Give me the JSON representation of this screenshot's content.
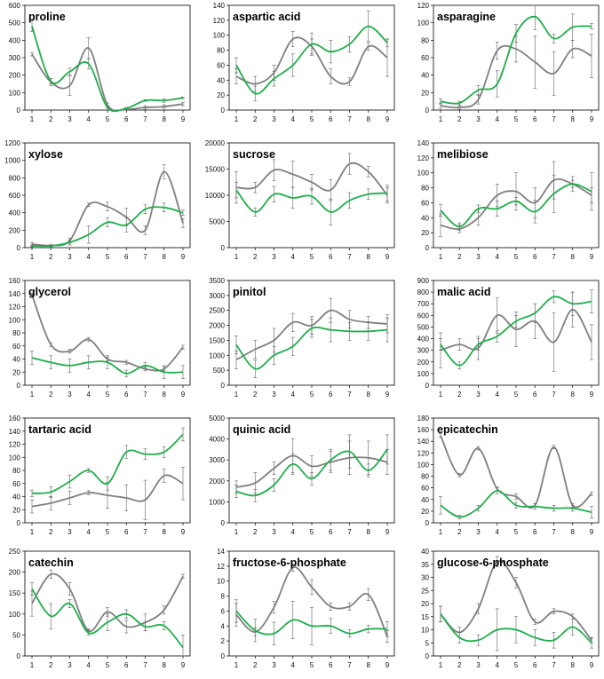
{
  "colors": {
    "series_a": "#7f7f7f",
    "series_b": "#1fae4b",
    "frame": "#000000"
  },
  "chart_data": [
    {
      "type": "line",
      "title": "proline",
      "ylim": [
        0,
        600
      ],
      "yticks": [
        0,
        100,
        200,
        300,
        400,
        500,
        600
      ],
      "categories": [
        "1",
        "2",
        "3",
        "4",
        "5",
        "6",
        "7",
        "8",
        "9"
      ],
      "series": [
        {
          "name": "gray",
          "values": [
            320,
            160,
            140,
            355,
            30,
            5,
            15,
            20,
            35
          ],
          "errors": [
            10,
            20,
            55,
            60,
            10,
            5,
            10,
            10,
            10
          ]
        },
        {
          "name": "green",
          "values": [
            480,
            165,
            220,
            265,
            15,
            10,
            55,
            55,
            70
          ],
          "errors": [
            30,
            15,
            20,
            30,
            5,
            5,
            5,
            10,
            5
          ]
        }
      ]
    },
    {
      "type": "line",
      "title": "aspartic acid",
      "ylim": [
        0,
        140
      ],
      "yticks": [
        0,
        20,
        40,
        60,
        80,
        100,
        120,
        140
      ],
      "categories": [
        "1",
        "2",
        "3",
        "4",
        "5",
        "6",
        "7",
        "8",
        "9"
      ],
      "series": [
        {
          "name": "gray",
          "values": [
            45,
            35,
            50,
            95,
            85,
            45,
            38,
            85,
            70
          ],
          "errors": [
            10,
            10,
            10,
            10,
            10,
            10,
            5,
            5,
            25
          ]
        },
        {
          "name": "green",
          "values": [
            60,
            22,
            42,
            60,
            88,
            78,
            88,
            112,
            90
          ],
          "errors": [
            10,
            10,
            10,
            15,
            15,
            15,
            10,
            20,
            5
          ]
        }
      ]
    },
    {
      "type": "line",
      "title": "asparagine",
      "ylim": [
        0,
        120
      ],
      "yticks": [
        0,
        20,
        40,
        60,
        80,
        100,
        120
      ],
      "categories": [
        "1",
        "2",
        "3",
        "4",
        "5",
        "6",
        "7",
        "8",
        "9"
      ],
      "series": [
        {
          "name": "gray",
          "values": [
            5,
            3,
            12,
            68,
            70,
            55,
            42,
            70,
            62
          ],
          "errors": [
            3,
            2,
            5,
            10,
            15,
            30,
            25,
            10,
            25
          ]
        },
        {
          "name": "green",
          "values": [
            10,
            8,
            23,
            30,
            88,
            107,
            82,
            95,
            96
          ],
          "errors": [
            3,
            2,
            5,
            15,
            10,
            15,
            5,
            15,
            3
          ]
        }
      ]
    },
    {
      "type": "line",
      "title": "xylose",
      "ylim": [
        0,
        1200
      ],
      "yticks": [
        0,
        200,
        400,
        600,
        800,
        1000,
        1200
      ],
      "categories": [
        "1",
        "2",
        "3",
        "4",
        "5",
        "6",
        "7",
        "8",
        "9"
      ],
      "series": [
        {
          "name": "gray",
          "values": [
            40,
            25,
            80,
            490,
            470,
            350,
            200,
            870,
            280
          ],
          "errors": [
            20,
            10,
            30,
            20,
            50,
            100,
            50,
            80,
            50
          ]
        },
        {
          "name": "green",
          "values": [
            20,
            20,
            60,
            150,
            290,
            260,
            440,
            460,
            400
          ],
          "errors": [
            10,
            10,
            30,
            100,
            50,
            80,
            50,
            50,
            30
          ]
        }
      ]
    },
    {
      "type": "line",
      "title": "sucrose",
      "ylim": [
        0,
        20000
      ],
      "yticks": [
        0,
        5000,
        10000,
        15000,
        20000
      ],
      "categories": [
        "1",
        "2",
        "3",
        "4",
        "5",
        "6",
        "7",
        "8",
        "9"
      ],
      "series": [
        {
          "name": "gray",
          "values": [
            11500,
            11500,
            14800,
            14000,
            12500,
            11000,
            16000,
            14500,
            10000
          ],
          "errors": [
            3000,
            1000,
            2000,
            2500,
            1500,
            2000,
            2000,
            1000,
            1500
          ]
        },
        {
          "name": "green",
          "values": [
            11000,
            6800,
            10200,
            9500,
            9800,
            6800,
            9000,
            10200,
            10400
          ],
          "errors": [
            1500,
            800,
            1500,
            2000,
            1500,
            2500,
            1500,
            1000,
            1500
          ]
        }
      ]
    },
    {
      "type": "line",
      "title": "melibiose",
      "ylim": [
        0,
        140
      ],
      "yticks": [
        0,
        20,
        40,
        60,
        80,
        100,
        120,
        140
      ],
      "categories": [
        "1",
        "2",
        "3",
        "4",
        "5",
        "6",
        "7",
        "8",
        "9"
      ],
      "series": [
        {
          "name": "gray",
          "values": [
            30,
            25,
            40,
            70,
            75,
            60,
            90,
            85,
            70
          ],
          "errors": [
            15,
            5,
            10,
            15,
            25,
            20,
            25,
            10,
            10
          ]
        },
        {
          "name": "green",
          "values": [
            50,
            28,
            52,
            52,
            62,
            48,
            72,
            85,
            75
          ],
          "errors": [
            8,
            5,
            5,
            10,
            5,
            15,
            25,
            5,
            25
          ]
        }
      ]
    },
    {
      "type": "line",
      "title": "glycerol",
      "ylim": [
        0,
        160
      ],
      "yticks": [
        0,
        20,
        40,
        60,
        80,
        100,
        120,
        140,
        160
      ],
      "categories": [
        "1",
        "2",
        "3",
        "4",
        "5",
        "6",
        "7",
        "8",
        "9"
      ],
      "series": [
        {
          "name": "gray",
          "values": [
            138,
            62,
            52,
            70,
            40,
            35,
            25,
            25,
            58
          ],
          "errors": [
            3,
            3,
            3,
            3,
            3,
            3,
            3,
            3,
            3
          ]
        },
        {
          "name": "green",
          "values": [
            42,
            35,
            30,
            35,
            35,
            18,
            30,
            20,
            20
          ],
          "errors": [
            10,
            10,
            10,
            10,
            10,
            5,
            5,
            10,
            10
          ]
        }
      ]
    },
    {
      "type": "line",
      "title": "pinitol",
      "ylim": [
        0,
        3500
      ],
      "yticks": [
        0,
        500,
        1000,
        1500,
        2000,
        2500,
        3000,
        3500
      ],
      "categories": [
        "1",
        "2",
        "3",
        "4",
        "5",
        "6",
        "7",
        "8",
        "9"
      ],
      "series": [
        {
          "name": "gray",
          "values": [
            850,
            1200,
            1500,
            2100,
            2000,
            2500,
            2200,
            2100,
            2050
          ],
          "errors": [
            300,
            300,
            400,
            300,
            300,
            400,
            300,
            200,
            300
          ]
        },
        {
          "name": "green",
          "values": [
            1350,
            550,
            1000,
            1300,
            1900,
            1850,
            1800,
            1800,
            1850
          ],
          "errors": [
            300,
            300,
            300,
            300,
            300,
            400,
            300,
            300,
            400
          ]
        }
      ]
    },
    {
      "type": "line",
      "title": "malic acid",
      "ylim": [
        0,
        900
      ],
      "yticks": [
        0,
        100,
        200,
        300,
        400,
        500,
        600,
        700,
        800,
        900
      ],
      "categories": [
        "1",
        "2",
        "3",
        "4",
        "5",
        "6",
        "7",
        "8",
        "9"
      ],
      "series": [
        {
          "name": "gray",
          "values": [
            300,
            350,
            320,
            600,
            480,
            550,
            370,
            650,
            370
          ],
          "errors": [
            150,
            50,
            100,
            150,
            150,
            150,
            250,
            150,
            150
          ]
        },
        {
          "name": "green",
          "values": [
            350,
            170,
            350,
            420,
            550,
            620,
            760,
            700,
            720
          ],
          "errors": [
            50,
            30,
            50,
            50,
            50,
            80,
            50,
            100,
            100
          ]
        }
      ]
    },
    {
      "type": "line",
      "title": "tartaric acid",
      "ylim": [
        0,
        160
      ],
      "yticks": [
        0,
        20,
        40,
        60,
        80,
        100,
        120,
        140,
        160
      ],
      "categories": [
        "1",
        "2",
        "3",
        "4",
        "5",
        "6",
        "7",
        "8",
        "9"
      ],
      "series": [
        {
          "name": "gray",
          "values": [
            25,
            30,
            38,
            46,
            42,
            38,
            35,
            72,
            60
          ],
          "errors": [
            10,
            10,
            10,
            3,
            20,
            20,
            30,
            10,
            25
          ]
        },
        {
          "name": "green",
          "values": [
            45,
            47,
            63,
            80,
            60,
            108,
            105,
            108,
            135
          ],
          "errors": [
            5,
            8,
            10,
            3,
            10,
            10,
            8,
            8,
            10
          ]
        }
      ]
    },
    {
      "type": "line",
      "title": "quinic acid",
      "ylim": [
        0,
        5000
      ],
      "yticks": [
        0,
        1000,
        2000,
        3000,
        4000,
        5000
      ],
      "categories": [
        "1",
        "2",
        "3",
        "4",
        "5",
        "6",
        "7",
        "8",
        "9"
      ],
      "series": [
        {
          "name": "gray",
          "values": [
            1700,
            1900,
            2600,
            3200,
            2700,
            2900,
            3100,
            3100,
            2900
          ],
          "errors": [
            300,
            500,
            300,
            800,
            500,
            500,
            800,
            800,
            600
          ]
        },
        {
          "name": "green",
          "values": [
            1500,
            1300,
            1800,
            2800,
            2100,
            3000,
            3400,
            2500,
            3500
          ],
          "errors": [
            300,
            300,
            300,
            500,
            300,
            500,
            800,
            300,
            700
          ]
        }
      ]
    },
    {
      "type": "line",
      "title": "epicatechin",
      "ylim": [
        0,
        180
      ],
      "yticks": [
        0,
        20,
        40,
        60,
        80,
        100,
        120,
        140,
        160,
        180
      ],
      "categories": [
        "1",
        "2",
        "3",
        "4",
        "5",
        "6",
        "7",
        "8",
        "9"
      ],
      "series": [
        {
          "name": "gray",
          "values": [
            150,
            82,
            128,
            58,
            45,
            30,
            130,
            30,
            50
          ],
          "errors": [
            3,
            3,
            3,
            3,
            5,
            3,
            3,
            3,
            3
          ]
        },
        {
          "name": "green",
          "values": [
            30,
            10,
            25,
            55,
            30,
            28,
            25,
            25,
            18
          ],
          "errors": [
            15,
            3,
            5,
            5,
            5,
            5,
            5,
            5,
            10
          ]
        }
      ]
    },
    {
      "type": "line",
      "title": "catechin",
      "ylim": [
        0,
        250
      ],
      "yticks": [
        0,
        50,
        100,
        150,
        200,
        250
      ],
      "categories": [
        "1",
        "2",
        "3",
        "4",
        "5",
        "6",
        "7",
        "8",
        "9"
      ],
      "series": [
        {
          "name": "gray",
          "values": [
            125,
            195,
            160,
            60,
            105,
            70,
            80,
            110,
            190
          ],
          "errors": [
            30,
            10,
            15,
            5,
            10,
            15,
            20,
            10,
            5
          ]
        },
        {
          "name": "green",
          "values": [
            160,
            95,
            125,
            55,
            80,
            100,
            70,
            72,
            20
          ],
          "errors": [
            15,
            30,
            10,
            5,
            20,
            10,
            10,
            10,
            30
          ]
        }
      ]
    },
    {
      "type": "line",
      "title": "fructose-6-phosphate",
      "ylim": [
        0,
        14
      ],
      "yticks": [
        0,
        2,
        4,
        6,
        8,
        10,
        12,
        14
      ],
      "categories": [
        "1",
        "2",
        "3",
        "4",
        "5",
        "6",
        "7",
        "8",
        "9"
      ],
      "series": [
        {
          "name": "gray",
          "values": [
            5.5,
            3.2,
            6.5,
            11.8,
            9.2,
            6.6,
            6.6,
            8.2,
            2.6
          ],
          "errors": [
            1.5,
            0.5,
            0.8,
            0.5,
            1.0,
            0.5,
            0.5,
            0.8,
            0.8
          ]
        },
        {
          "name": "green",
          "values": [
            6.0,
            3.4,
            3.0,
            4.8,
            4.0,
            4.0,
            3.0,
            3.6,
            3.6
          ],
          "errors": [
            1.5,
            1.5,
            1.5,
            2.5,
            2.5,
            1.0,
            0.5,
            0.5,
            1.0
          ]
        }
      ]
    },
    {
      "type": "line",
      "title": "glucose-6-phosphate",
      "ylim": [
        0,
        40
      ],
      "yticks": [
        0,
        5,
        10,
        15,
        20,
        25,
        30,
        35,
        40
      ],
      "categories": [
        "1",
        "2",
        "3",
        "4",
        "5",
        "6",
        "7",
        "8",
        "9"
      ],
      "series": [
        {
          "name": "gray",
          "values": [
            16,
            9,
            18,
            36,
            28,
            13,
            17,
            15,
            6
          ],
          "errors": [
            3,
            2,
            2,
            2,
            2,
            1,
            1,
            1,
            1
          ]
        },
        {
          "name": "green",
          "values": [
            16,
            7,
            6,
            10,
            10,
            7,
            6,
            11,
            5
          ],
          "errors": [
            3,
            2,
            2,
            8,
            5,
            3,
            3,
            3,
            2
          ]
        }
      ]
    }
  ]
}
